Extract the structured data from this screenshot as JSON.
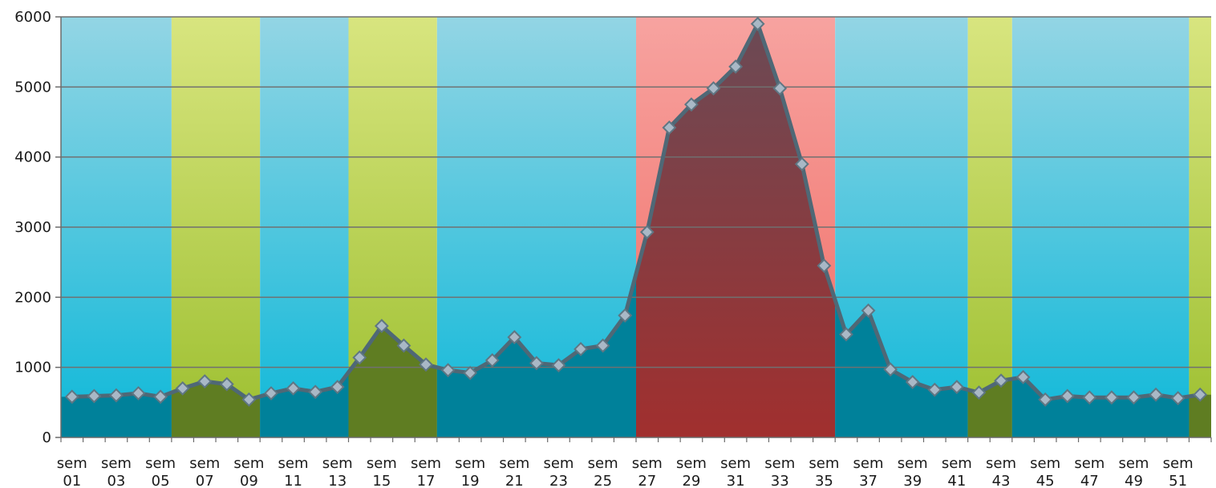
{
  "chart_data": {
    "type": "area",
    "title": "",
    "xlabel": "",
    "ylabel": "",
    "ylim": [
      0,
      6000
    ],
    "yticks": [
      0,
      1000,
      2000,
      3000,
      4000,
      5000,
      6000
    ],
    "grid": true,
    "categories": [
      "sem 01",
      "sem 02",
      "sem 03",
      "sem 04",
      "sem 05",
      "sem 06",
      "sem 07",
      "sem 08",
      "sem 09",
      "sem 10",
      "sem 11",
      "sem 12",
      "sem 13",
      "sem 14",
      "sem 15",
      "sem 16",
      "sem 17",
      "sem 18",
      "sem 19",
      "sem 20",
      "sem 21",
      "sem 22",
      "sem 23",
      "sem 24",
      "sem 25",
      "sem 26",
      "sem 27",
      "sem 28",
      "sem 29",
      "sem 30",
      "sem 31",
      "sem 32",
      "sem 33",
      "sem 34",
      "sem 35",
      "sem 36",
      "sem 37",
      "sem 38",
      "sem 39",
      "sem 40",
      "sem 41",
      "sem 42",
      "sem 43",
      "sem 44",
      "sem 45",
      "sem 46",
      "sem 47",
      "sem 48",
      "sem 49",
      "sem 50",
      "sem 51",
      "sem 52"
    ],
    "tick_labels": [
      [
        "sem",
        "01"
      ],
      [
        "sem",
        "03"
      ],
      [
        "sem",
        "05"
      ],
      [
        "sem",
        "07"
      ],
      [
        "sem",
        "09"
      ],
      [
        "sem",
        "11"
      ],
      [
        "sem",
        "13"
      ],
      [
        "sem",
        "15"
      ],
      [
        "sem",
        "17"
      ],
      [
        "sem",
        "19"
      ],
      [
        "sem",
        "21"
      ],
      [
        "sem",
        "23"
      ],
      [
        "sem",
        "25"
      ],
      [
        "sem",
        "27"
      ],
      [
        "sem",
        "29"
      ],
      [
        "sem",
        "31"
      ],
      [
        "sem",
        "33"
      ],
      [
        "sem",
        "35"
      ],
      [
        "sem",
        "37"
      ],
      [
        "sem",
        "39"
      ],
      [
        "sem",
        "41"
      ],
      [
        "sem",
        "43"
      ],
      [
        "sem",
        "45"
      ],
      [
        "sem",
        "47"
      ],
      [
        "sem",
        "49"
      ],
      [
        "sem",
        "51"
      ]
    ],
    "series": [
      {
        "values": [
          580,
          590,
          600,
          630,
          580,
          700,
          800,
          760,
          540,
          630,
          700,
          650,
          720,
          1140,
          1590,
          1310,
          1040,
          960,
          920,
          1100,
          1430,
          1060,
          1030,
          1260,
          1310,
          1740,
          2930,
          4420,
          4750,
          4980,
          5290,
          5900,
          4980,
          3900,
          2450,
          1470,
          1810,
          970,
          790,
          680,
          720,
          640,
          810,
          860,
          540,
          590,
          570,
          570,
          570,
          610,
          560,
          610
        ]
      }
    ],
    "period_bands": [
      {
        "start": "sem 01",
        "end": "sem 05",
        "level": "normal"
      },
      {
        "start": "sem 06",
        "end": "sem 09",
        "level": "elevated"
      },
      {
        "start": "sem 10",
        "end": "sem 13",
        "level": "normal"
      },
      {
        "start": "sem 14",
        "end": "sem 17",
        "level": "elevated"
      },
      {
        "start": "sem 18",
        "end": "sem 26",
        "level": "normal"
      },
      {
        "start": "sem 27",
        "end": "sem 35",
        "level": "epidemic"
      },
      {
        "start": "sem 36",
        "end": "sem 41",
        "level": "normal"
      },
      {
        "start": "sem 42",
        "end": "sem 43",
        "level": "elevated"
      },
      {
        "start": "sem 44",
        "end": "sem 51",
        "level": "normal"
      },
      {
        "start": "sem 52",
        "end": "sem 52",
        "level": "elevated"
      }
    ],
    "colors": {
      "normal_band_top": "#93d5e4",
      "normal_band_bottom": "#0db8d9",
      "elevated_band_top": "#d8e57f",
      "elevated_band_bottom": "#9cbf2f",
      "epidemic_band_top": "#f7a3a0",
      "epidemic_band_bottom": "#f06a62",
      "area_normal": "#00819a",
      "area_elevated": "#5f7d22",
      "area_epidemic_top": "#6b4a55",
      "area_epidemic_bottom": "#a12f2e",
      "line": "#4f6876",
      "marker_fill": "#a9b8c6",
      "marker_stroke": "#5f7683",
      "gridline": "#707070",
      "axis": "#6b6b6b"
    }
  }
}
